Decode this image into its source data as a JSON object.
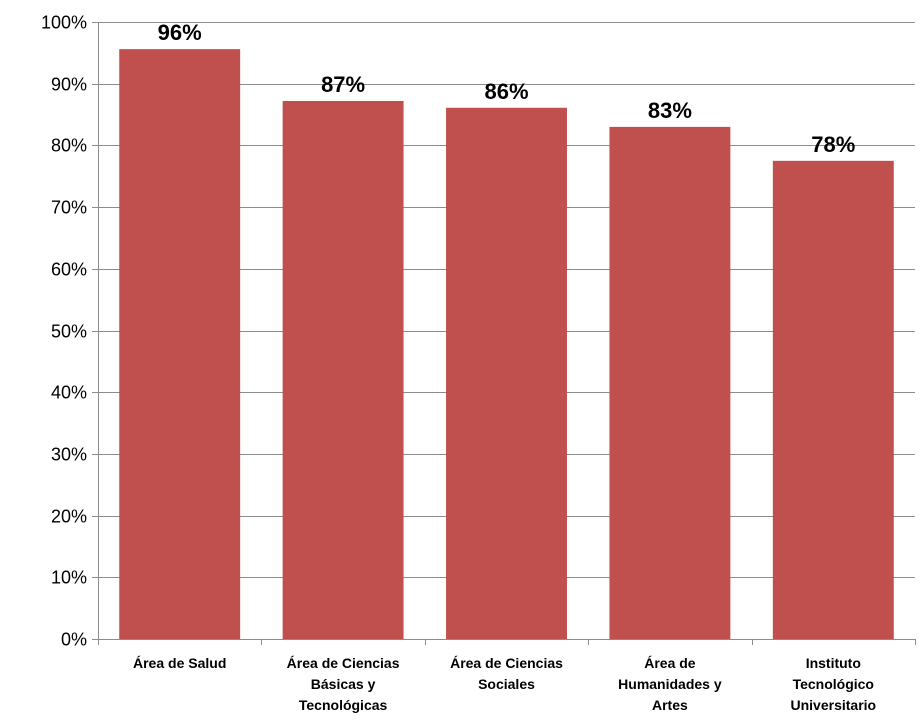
{
  "chart_data": {
    "type": "bar",
    "title": "",
    "xlabel": "",
    "ylabel": "",
    "categories": [
      [
        "Área de Salud"
      ],
      [
        "Área de Ciencias",
        "Básicas y",
        "Tecnológicas"
      ],
      [
        "Área de Ciencias",
        "Sociales"
      ],
      [
        "Área de",
        "Humanidades y",
        "Artes"
      ],
      [
        "Instituto",
        "Tecnológico",
        "Universitario"
      ]
    ],
    "values": [
      0.956,
      0.872,
      0.861,
      0.83,
      0.775
    ],
    "data_labels": [
      "96%",
      "87%",
      "86%",
      "83%",
      "78%"
    ],
    "ylim": [
      0,
      1
    ],
    "yticks": [
      0,
      0.1,
      0.2,
      0.3,
      0.4,
      0.5,
      0.6,
      0.7,
      0.8,
      0.9,
      1.0
    ],
    "ytick_labels": [
      "0%",
      "10%",
      "20%",
      "30%",
      "40%",
      "50%",
      "60%",
      "70%",
      "80%",
      "90%",
      "100%"
    ],
    "grid": true,
    "legend": "none",
    "colors": {
      "bar": "#c0504d",
      "grid": "#8c8c8c",
      "axis": "#8c8c8c",
      "text": "#000000"
    }
  }
}
